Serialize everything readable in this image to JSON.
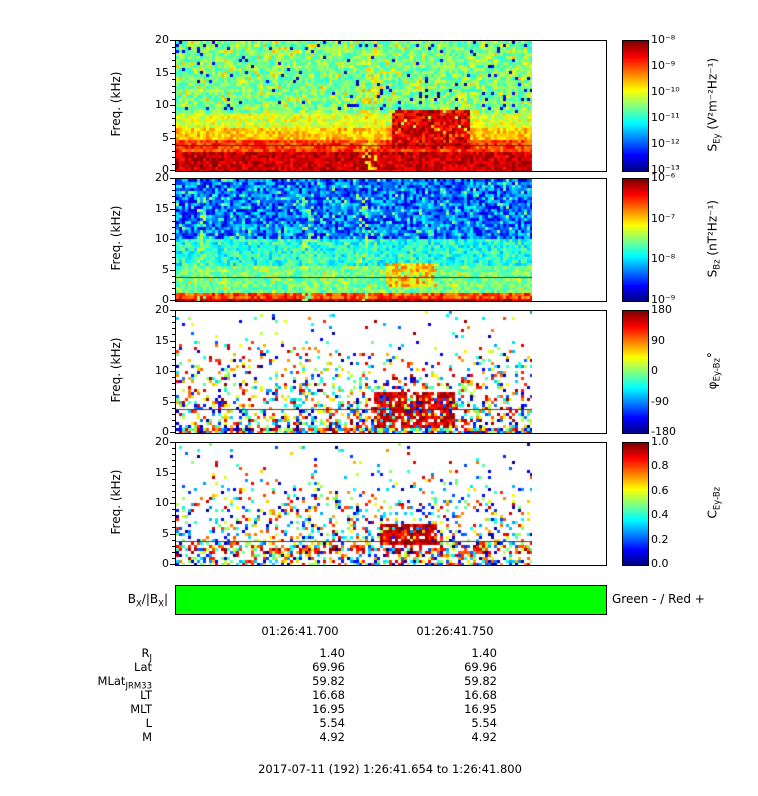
{
  "figure": {
    "bottom_title": "2017-07-11 (192) 1:26:41.654 to 1:26:41.800",
    "time_tick_labels": [
      "01:26:41.700",
      "01:26:41.750"
    ]
  },
  "axes": {
    "freq_label": "Freq. (kHz)",
    "freq_ticks": [
      "20",
      "15",
      "10",
      "5",
      "0"
    ]
  },
  "panels": [
    {
      "id": "sey",
      "name": "S_Ey spectrogram",
      "colorbar_ticks": [
        "10⁻⁸",
        "10⁻⁹",
        "10⁻¹⁰",
        "10⁻¹¹",
        "10⁻¹²",
        "10⁻¹³"
      ],
      "label_sym": "S",
      "label_sub": "Ey",
      "label_unit": " (V²m⁻²Hz⁻¹)"
    },
    {
      "id": "sbz",
      "name": "S_Bz spectrogram",
      "colorbar_ticks": [
        "10⁻⁶",
        "10⁻⁷",
        "10⁻⁸",
        "10⁻⁹"
      ],
      "label_sym": "S",
      "label_sub": "Bz",
      "label_unit": " (nT²Hz⁻¹)"
    },
    {
      "id": "phase",
      "name": "Cross-phase Ey-Bz",
      "colorbar_ticks": [
        "180",
        "90",
        "0",
        "-90",
        "-180"
      ],
      "label_sym": "φ",
      "label_sub": "Ey-Bz",
      "label_unit": "°"
    },
    {
      "id": "coherence",
      "name": "Coherence Ey-Bz",
      "colorbar_ticks": [
        "1.0",
        "0.8",
        "0.6",
        "0.4",
        "0.2",
        "0.0"
      ],
      "label_sym": "C",
      "label_sub": "Ey-Bz",
      "label_unit": ""
    }
  ],
  "bx_bar": {
    "label_parts": {
      "b1": "B",
      "s1": "X",
      "mid": "/|B",
      "s2": "X",
      "end": "|"
    },
    "legend": "Green - / Red +",
    "bar_color": "#00ff00"
  },
  "ephemeris": [
    {
      "label": "R",
      "sub": "J",
      "v1": "1.40",
      "v2": "1.40"
    },
    {
      "label": "Lat",
      "sub": "",
      "v1": "69.96",
      "v2": "69.96"
    },
    {
      "label": "MLat",
      "sub": "JRM33",
      "v1": "59.82",
      "v2": "59.82"
    },
    {
      "label": "LT",
      "sub": "",
      "v1": "16.68",
      "v2": "16.68"
    },
    {
      "label": "MLT",
      "sub": "",
      "v1": "16.95",
      "v2": "16.95"
    },
    {
      "label": "L",
      "sub": "",
      "v1": "5.54",
      "v2": "5.54"
    },
    {
      "label": "M",
      "sub": "",
      "v1": "4.92",
      "v2": "4.92"
    }
  ],
  "chart_data": [
    {
      "type": "heatmap",
      "title": "S_Ey wave electric spectral density",
      "xlabel": "Time 2017-07-11 01:26:41.654 to 01:26:41.800",
      "ylabel": "Freq. (kHz)",
      "ylim": [
        0,
        20
      ],
      "colormap": "jet",
      "scale": "log10",
      "zlim": [
        "1e-13",
        "1e-8"
      ],
      "z_units": "V² m⁻² Hz⁻¹",
      "features": [
        "intense broadband emission (red) below ~7 kHz for the whole interval",
        "moderate green/cyan noise from 8 to 20 kHz",
        "enhanced red burst near 01:26:41.74-41.76 spanning ~4-9 kHz",
        "thin dark overlay line near 4 kHz",
        "no data (white) after ~01:26:41.78 to right edge of axes"
      ]
    },
    {
      "type": "heatmap",
      "title": "S_Bz wave magnetic spectral density",
      "xlabel": "Time 2017-07-11 01:26:41.654 to 01:26:41.800",
      "ylabel": "Freq. (kHz)",
      "ylim": [
        0,
        20
      ],
      "colormap": "jet",
      "scale": "log10",
      "zlim": [
        "1e-9",
        "1e-6"
      ],
      "z_units": "nT² Hz⁻¹",
      "features": [
        "low power (blue/dark blue) above ~10 kHz",
        "moderate power (green) from ~2 to 10 kHz",
        "intense power (red) below ~1.5 kHz",
        "yellow-green enhancement near 01:26:41.74-41.76 at ~3-6.5 kHz"
      ]
    },
    {
      "type": "heatmap",
      "title": "Cross phase φ_Ey-Bz",
      "ylabel": "Freq. (kHz)",
      "ylim": [
        0,
        20
      ],
      "colormap": "jet",
      "zlim": [
        -180,
        180
      ],
      "z_units": "deg",
      "features": [
        "sparse scattered phase speckle above ~8 kHz",
        "dense mixed phase speckle below ~8 kHz",
        "coherent near-±180° (red) patch around 01:26:41.74-41.76 at ~1-7 kHz"
      ]
    },
    {
      "type": "heatmap",
      "title": "Coherence C_Ey-Bz",
      "ylabel": "Freq. (kHz)",
      "ylim": [
        0,
        20
      ],
      "colormap": "jet",
      "zlim": [
        0,
        1
      ],
      "z_units": "",
      "features": [
        "sparse low-coherence speckle, denser below ~8 kHz",
        "high coherence (~1, red) patch around 01:26:41.74-41.76 at ~3.5-7 kHz",
        "broken high-coherence band near 2-3 kHz"
      ]
    },
    {
      "type": "bar",
      "title": "BX/|BX| sign indicator",
      "value": "negative (solid green) for the entire interval",
      "legend": "Green - / Red +",
      "color": "#00ff00"
    }
  ]
}
